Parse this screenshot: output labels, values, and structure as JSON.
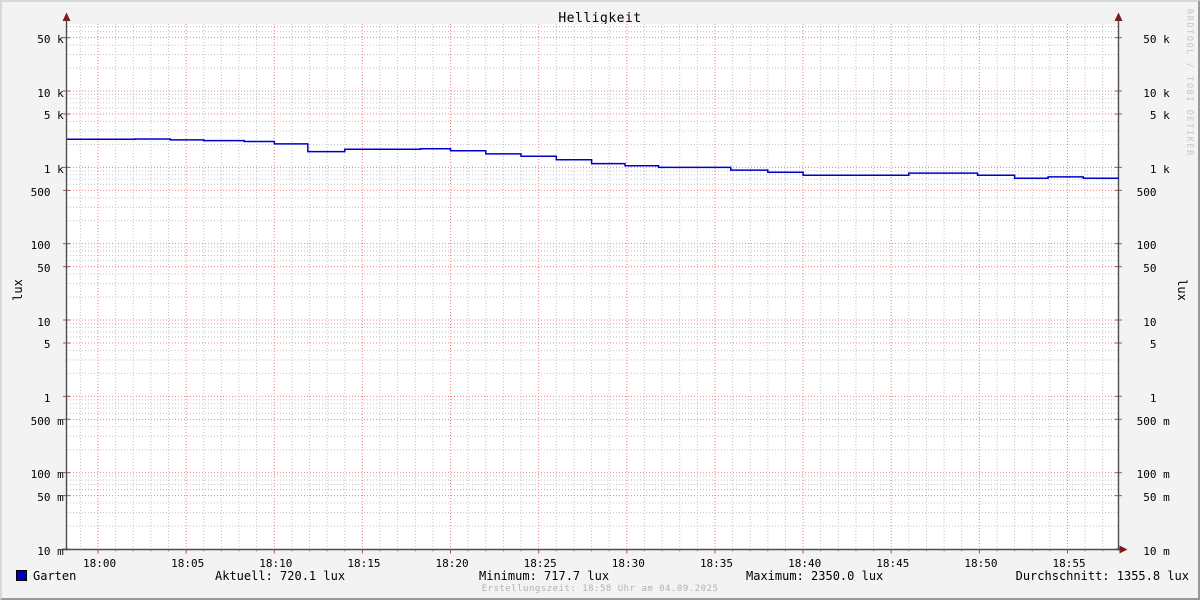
{
  "title": "Helligkeit",
  "watermark": "RRDTOOL / TOBI OETIKER",
  "axes": {
    "left_unit": "lux",
    "right_unit": "lux",
    "y_tick_labels": [
      {
        "value": 50000,
        "label": "  50 k"
      },
      {
        "value": 10000,
        "label": "  10 k"
      },
      {
        "value": 5000,
        "label": "   5 k"
      },
      {
        "value": 1000,
        "label": "   1 k"
      },
      {
        "value": 500,
        "label": " 500  "
      },
      {
        "value": 100,
        "label": " 100  "
      },
      {
        "value": 50,
        "label": "  50  "
      },
      {
        "value": 10,
        "label": "  10  "
      },
      {
        "value": 5,
        "label": "   5  "
      },
      {
        "value": 1,
        "label": "   1  "
      },
      {
        "value": 0.5,
        "label": " 500 m"
      },
      {
        "value": 0.1,
        "label": " 100 m"
      },
      {
        "value": 0.05,
        "label": "  50 m"
      },
      {
        "value": 0.01,
        "label": "  10 m"
      }
    ],
    "x_tick_labels": [
      {
        "minute": 0,
        "label": "18:00"
      },
      {
        "minute": 5,
        "label": "18:05"
      },
      {
        "minute": 10,
        "label": "18:10"
      },
      {
        "minute": 15,
        "label": "18:15"
      },
      {
        "minute": 20,
        "label": "18:20"
      },
      {
        "minute": 25,
        "label": "18:25"
      },
      {
        "minute": 30,
        "label": "18:30"
      },
      {
        "minute": 35,
        "label": "18:35"
      },
      {
        "minute": 40,
        "label": "18:40"
      },
      {
        "minute": 45,
        "label": "18:45"
      },
      {
        "minute": 50,
        "label": "18:50"
      },
      {
        "minute": 55,
        "label": "18:55"
      }
    ]
  },
  "footer": {
    "legend_label": "Garten",
    "aktuell": "Aktuell: 720.1 lux",
    "minimum": "Minimum: 717.7 lux",
    "maximum": "Maximum: 2350.0 lux",
    "durchschnitt": "Durchschnitt: 1355.8 lux",
    "creation": "Erstellungszeit: 18:58 Uhr am 04.09.2025"
  },
  "colors": {
    "line": "#0000cc",
    "legend_swatch": "#0000bb",
    "major_grid": "#f08080",
    "minor_grid": "#c3c3c3",
    "axis": "#4d4d4d",
    "arrow": "#7d1d1d",
    "canvas": "#ffffff",
    "background": "#f3f3f3"
  },
  "chart_data": {
    "type": "line",
    "style": "step",
    "title": "Helligkeit",
    "ylabel": "lux",
    "yscale": "log",
    "ylim": [
      0.01,
      75000
    ],
    "x_axis": "time, 17:58 - 18:58, ticks every 5 min, minor grid every 1 min",
    "x_range_minutes_after_1800": [
      -1.8,
      57.9
    ],
    "grid": true,
    "legend_position": "bottom-left",
    "series": [
      {
        "name": "Garten",
        "color": "#0000cc",
        "steps_minutes_after_1800_lux": [
          {
            "t": -1.8,
            "lux": 2330
          },
          {
            "t": 2.1,
            "lux": 2350
          },
          {
            "t": 4.1,
            "lux": 2290
          },
          {
            "t": 6.0,
            "lux": 2240
          },
          {
            "t": 8.3,
            "lux": 2180
          },
          {
            "t": 10.0,
            "lux": 2030
          },
          {
            "t": 11.9,
            "lux": 1610
          },
          {
            "t": 14.0,
            "lux": 1730
          },
          {
            "t": 18.3,
            "lux": 1750
          },
          {
            "t": 20.0,
            "lux": 1650
          },
          {
            "t": 22.0,
            "lux": 1500
          },
          {
            "t": 24.0,
            "lux": 1400
          },
          {
            "t": 26.0,
            "lux": 1260
          },
          {
            "t": 28.0,
            "lux": 1120
          },
          {
            "t": 29.9,
            "lux": 1050
          },
          {
            "t": 31.8,
            "lux": 1000
          },
          {
            "t": 35.9,
            "lux": 920
          },
          {
            "t": 38.0,
            "lux": 865
          },
          {
            "t": 40.0,
            "lux": 790
          },
          {
            "t": 46.0,
            "lux": 840
          },
          {
            "t": 49.9,
            "lux": 790
          },
          {
            "t": 52.0,
            "lux": 717.7
          },
          {
            "t": 53.9,
            "lux": 750
          },
          {
            "t": 55.9,
            "lux": 720.1
          }
        ]
      }
    ],
    "stats": {
      "aktuell_lux": 720.1,
      "minimum_lux": 717.7,
      "maximum_lux": 2350.0,
      "durchschnitt_lux": 1355.8
    }
  }
}
